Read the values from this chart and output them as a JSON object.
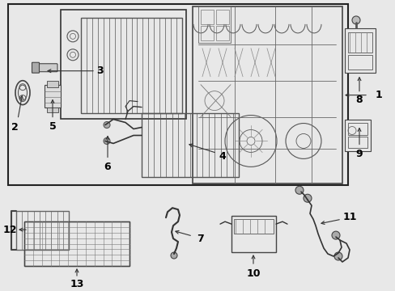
{
  "bg_color": "#e8e8e8",
  "line_color": "#333333",
  "fig_width": 4.89,
  "fig_height": 3.6,
  "dpi": 100
}
